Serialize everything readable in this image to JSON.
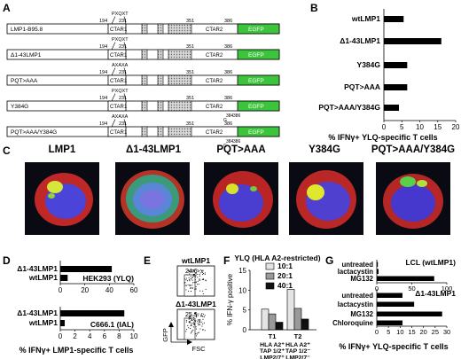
{
  "panel_letters": [
    "A",
    "B",
    "C",
    "D",
    "E",
    "F",
    "G"
  ],
  "panel_a": {
    "constructs": [
      {
        "name": "LMP1-B95.8",
        "top_labels": [
          "194",
          "231",
          "351",
          "386"
        ],
        "motif": "PXQXT",
        "suffix": []
      },
      {
        "name": "Δ1-43LMP1",
        "top_labels": [
          "194",
          "231",
          "351",
          "386"
        ],
        "motif": "PXQXT",
        "suffix": []
      },
      {
        "name": "PQT>AAA",
        "top_labels": [
          "194",
          "231",
          "351",
          "386"
        ],
        "motif": "AXAXA",
        "suffix": []
      },
      {
        "name": "Y384G",
        "top_labels": [
          "194",
          "231",
          "351",
          "386"
        ],
        "motif": "PXQXT",
        "suffix": [
          "384",
          "G",
          "386"
        ]
      },
      {
        "name": "PQT>AAA/Y384G",
        "top_labels": [
          "194",
          "231",
          "351",
          "386"
        ],
        "motif": "AXAXA",
        "suffix": [
          "384",
          "G",
          "386"
        ]
      }
    ],
    "ctar1": "CTAR1",
    "ctar2": "CTAR2",
    "egfp": "EGFP",
    "colors": {
      "egfp": "#3cc43c",
      "hatch": "#9a9a9a"
    }
  },
  "panel_b": {
    "chart_data": {
      "type": "bar",
      "orientation": "horizontal",
      "categories": [
        "wtLMP1",
        "Δ1-43LMP1",
        "Y384G",
        "PQT>AAA",
        "PQT>AAA/Y384G"
      ],
      "values": [
        5.5,
        16,
        6.5,
        6.5,
        4.2
      ],
      "xlabel": "% IFNγ+ YLQ-specific T cells",
      "xlim": [
        0,
        20
      ],
      "xticks": [
        "0",
        "5",
        "10",
        "15",
        "20"
      ]
    }
  },
  "panel_c": {
    "cells": [
      "LMP1",
      "Δ1-43LMP1",
      "PQT>AAA",
      "Y384G",
      "PQT>AAA/Y384G"
    ]
  },
  "panel_d": {
    "xlabel": "% IFNγ+ LMP1-specific T cells",
    "chart_data": [
      {
        "type": "bar",
        "orientation": "horizontal",
        "categories": [
          "Δ1-43LMP1",
          "wtLMP1"
        ],
        "values": [
          42,
          6
        ],
        "annotation": "HEK293 (YLQ)",
        "xlim": [
          0,
          60
        ],
        "xticks": [
          "0",
          "20",
          "40",
          "60"
        ]
      },
      {
        "type": "bar",
        "orientation": "horizontal",
        "categories": [
          "Δ1-43LMP1",
          "wtLMP1"
        ],
        "values": [
          8.7,
          0.6
        ],
        "annotation": "C666.1 (IAL)",
        "xlim": [
          0,
          10
        ],
        "xticks": [
          "0",
          "2",
          "4",
          "6",
          "8",
          "10"
        ]
      }
    ]
  },
  "panel_e": {
    "plots": [
      {
        "title": "wtLMP1",
        "value": "24.6"
      },
      {
        "title": "Δ1-43LMP1",
        "value": "25.9"
      }
    ],
    "ylabel": "GFP",
    "xlabel": "FSC"
  },
  "panel_f": {
    "chart_data": {
      "type": "bar",
      "title": "YLQ (HLA A2-restricted)",
      "ylabel": "% IFN-γ positive",
      "series": [
        {
          "name": "10:1",
          "values": [
            5.2,
            10.2
          ],
          "color": "#e4e4e4"
        },
        {
          "name": "20:1",
          "values": [
            4,
            5.4
          ],
          "color": "#9a9a9a"
        },
        {
          "name": "40:1",
          "values": [
            1.9,
            2.7
          ],
          "color": "#111111"
        }
      ],
      "categories": [
        {
          "head": "T1",
          "lines": [
            "HLA A2⁺",
            "TAP 1/2⁺",
            "LMP2/7⁺"
          ]
        },
        {
          "head": "T2",
          "lines": [
            "HLA A2⁺",
            "TAP 1/2⁻",
            "LMP2/7⁻"
          ]
        }
      ],
      "ylim": [
        0,
        15
      ],
      "yticks": [
        "0",
        "5",
        "10",
        "15"
      ]
    }
  },
  "panel_g": {
    "xlabel": "% IFNγ+ YLQ-specific T cells",
    "chart_data": [
      {
        "type": "bar",
        "orientation": "horizontal",
        "annotation": "LCL (wtLMP1)",
        "categories": [
          "untreated",
          "lactacystin",
          "MG132"
        ],
        "values": [
          0.5,
          2.5,
          82
        ],
        "xlim": [
          0,
          100
        ],
        "xticks": [
          "0",
          "50",
          "100"
        ]
      },
      {
        "type": "bar",
        "orientation": "horizontal",
        "annotation": "Δ1-43LMP1",
        "categories": [
          "untreated",
          "lactacystin",
          "MG132",
          "Chloroquine"
        ],
        "values": [
          11,
          16,
          28,
          11
        ],
        "xlim": [
          0,
          30
        ],
        "xticks": [
          "0",
          "5",
          "10",
          "15",
          "20",
          "25",
          "30"
        ]
      }
    ]
  }
}
